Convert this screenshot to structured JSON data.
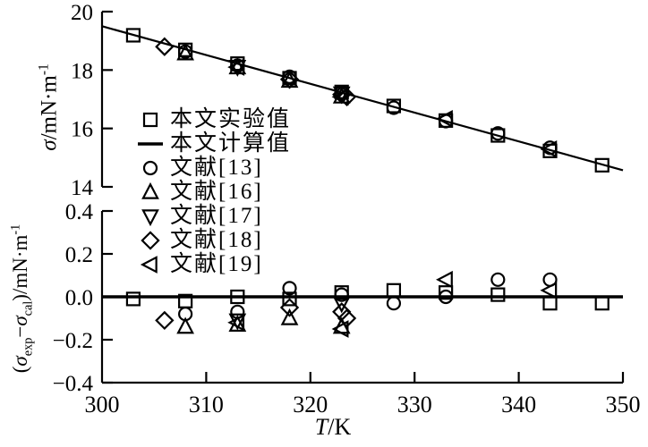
{
  "figure": {
    "background": "#ffffff",
    "ink_color": "#000000"
  },
  "axis_labels": {
    "top_y_sigma": "σ",
    "top_y_unit": "/mN·m",
    "top_y_sup": "-1",
    "bot_open": "(",
    "bot_sigma1": "σ",
    "bot_sub1": "exp",
    "bot_minus": "−",
    "bot_sigma2": "σ",
    "bot_sub2": "cal",
    "bot_close": ")/mN·m",
    "bot_sup": "-1",
    "x_italic": "T",
    "x_rest": "/K"
  },
  "legend": {
    "items": [
      {
        "marker": "square",
        "label": "本文实验值"
      },
      {
        "marker": "line",
        "label": "本文计算值"
      },
      {
        "marker": "circle",
        "label": "文献[13]"
      },
      {
        "marker": "triangle-up",
        "label": "文献[16]"
      },
      {
        "marker": "triangle-down",
        "label": "文献[17]"
      },
      {
        "marker": "diamond",
        "label": "文献[18]"
      },
      {
        "marker": "triangle-left",
        "label": "文献[19]"
      }
    ]
  },
  "x_axis": {
    "label": "T/K",
    "lim": [
      300,
      350
    ],
    "ticks": [
      300,
      310,
      320,
      330,
      340,
      350
    ],
    "tick_labels": [
      "300",
      "310",
      "320",
      "330",
      "340",
      "350"
    ]
  },
  "chart_data": [
    {
      "type": "scatter",
      "panel": "top",
      "ylabel": "σ/mN·m⁻¹",
      "xlabel": "T/K",
      "ylim": [
        14,
        20
      ],
      "yticks": [
        20,
        18,
        16,
        14
      ],
      "ytick_labels": [
        "20",
        "18",
        "16",
        "14"
      ],
      "xlim": [
        300,
        350
      ],
      "grid": false,
      "legend_position": "inside-left",
      "line_series": {
        "name": "本文计算值",
        "points": [
          [
            300,
            19.5
          ],
          [
            350,
            14.57
          ]
        ]
      },
      "series": [
        {
          "name": "本文实验值",
          "marker": "square",
          "points": [
            [
              303,
              19.19
            ],
            [
              308,
              18.69
            ],
            [
              313,
              18.22
            ],
            [
              318,
              17.72
            ],
            [
              323,
              17.25
            ],
            [
              328,
              16.77
            ],
            [
              333,
              16.27
            ],
            [
              338,
              15.76
            ],
            [
              343,
              15.23
            ],
            [
              348,
              14.74
            ]
          ]
        },
        {
          "name": "文献[13]",
          "marker": "circle",
          "points": [
            [
              308,
              18.63
            ],
            [
              313,
              18.15
            ],
            [
              318,
              17.77
            ],
            [
              323,
              17.24
            ],
            [
              328,
              16.71
            ],
            [
              333,
              16.25
            ],
            [
              338,
              15.83
            ],
            [
              343,
              15.34
            ]
          ]
        },
        {
          "name": "文献[16]",
          "marker": "triangle-up",
          "points": [
            [
              308,
              18.57
            ],
            [
              313,
              18.09
            ],
            [
              318,
              17.63
            ],
            [
              323,
              17.09
            ]
          ]
        },
        {
          "name": "文献[17]",
          "marker": "triangle-down",
          "points": [
            [
              313,
              18.11
            ],
            [
              323,
              17.2
            ]
          ]
        },
        {
          "name": "文献[18]",
          "marker": "diamond",
          "points": [
            [
              306,
              18.8
            ],
            [
              318,
              17.68
            ],
            [
              323,
              17.16
            ],
            [
              323.5,
              17.08
            ]
          ]
        },
        {
          "name": "文献[19]",
          "marker": "triangle-left",
          "points": [
            [
              313,
              18.1
            ],
            [
              323,
              17.08
            ],
            [
              333,
              16.33
            ],
            [
              343,
              15.29
            ]
          ]
        }
      ]
    },
    {
      "type": "scatter",
      "panel": "bottom",
      "ylabel": "(σexp−σcal)/mN·m⁻¹",
      "xlabel": "T/K",
      "ylim": [
        -0.4,
        0.4
      ],
      "yticks": [
        0.4,
        0.2,
        0.0,
        -0.2,
        -0.4
      ],
      "ytick_labels": [
        "0.4",
        "0.2",
        "0.0",
        "−0.2",
        "−0.4"
      ],
      "xlim": [
        300,
        350
      ],
      "grid": false,
      "zero_line": 0.0,
      "series": [
        {
          "name": "本文实验值",
          "marker": "square",
          "points": [
            [
              303,
              -0.01
            ],
            [
              308,
              -0.02
            ],
            [
              313,
              0.0
            ],
            [
              318,
              -0.01
            ],
            [
              323,
              0.02
            ],
            [
              328,
              0.03
            ],
            [
              333,
              0.02
            ],
            [
              338,
              0.01
            ],
            [
              343,
              -0.03
            ],
            [
              348,
              -0.03
            ]
          ]
        },
        {
          "name": "文献[13]",
          "marker": "circle",
          "points": [
            [
              308,
              -0.08
            ],
            [
              313,
              -0.07
            ],
            [
              318,
              0.04
            ],
            [
              323,
              0.01
            ],
            [
              328,
              -0.03
            ],
            [
              333,
              0.0
            ],
            [
              338,
              0.08
            ],
            [
              343,
              0.08
            ]
          ]
        },
        {
          "name": "文献[16]",
          "marker": "triangle-up",
          "points": [
            [
              308,
              -0.14
            ],
            [
              313,
              -0.13
            ],
            [
              318,
              -0.1
            ],
            [
              323,
              -0.14
            ]
          ]
        },
        {
          "name": "文献[17]",
          "marker": "triangle-down",
          "points": [
            [
              313,
              -0.11
            ],
            [
              323,
              -0.03
            ]
          ]
        },
        {
          "name": "文献[18]",
          "marker": "diamond",
          "points": [
            [
              306,
              -0.11
            ],
            [
              318,
              -0.05
            ],
            [
              323,
              -0.07
            ],
            [
              323.5,
              -0.1
            ]
          ]
        },
        {
          "name": "文献[19]",
          "marker": "triangle-left",
          "points": [
            [
              313,
              -0.12
            ],
            [
              323,
              -0.15
            ],
            [
              333,
              0.08
            ],
            [
              343,
              0.03
            ]
          ]
        }
      ]
    }
  ]
}
